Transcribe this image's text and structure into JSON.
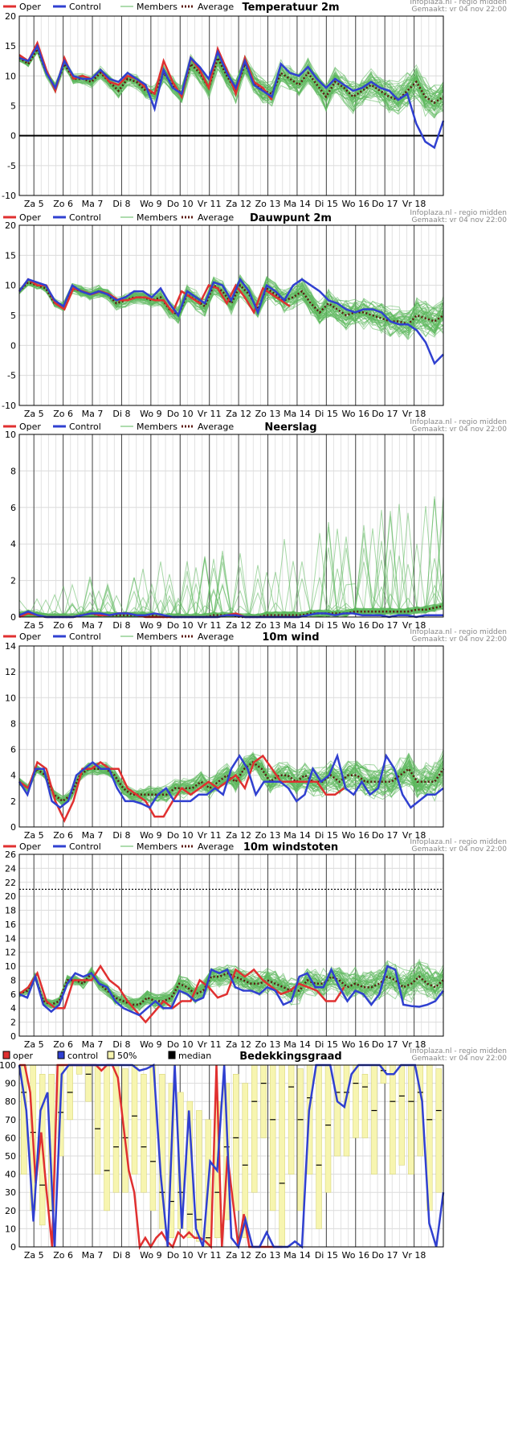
{
  "source": {
    "line1": "Infoplaza.nl - regio midden",
    "line2": "Gemaakt: vr 04 nov 22:00"
  },
  "days": [
    "Za 5",
    "Zo 6",
    "Ma 7",
    "Di 8",
    "Wo 9",
    "Do 10",
    "Vr 11",
    "Za 12",
    "Zo 13",
    "Ma 14",
    "Di 15",
    "Wo 16",
    "Do 17",
    "Vr 18"
  ],
  "legend": {
    "oper": "Oper",
    "control": "Control",
    "members": "Members",
    "average": "Average"
  },
  "legend_cloud": {
    "oper": "oper",
    "control": "control",
    "band": "50%",
    "median": "median"
  },
  "colors": {
    "oper": "#e03030",
    "control": "#3040d0",
    "members": "#5cb85c",
    "average": "#5a1a10",
    "band": "#f7f5b0",
    "zero_line": "#000000"
  },
  "chart_data": [
    {
      "type": "line",
      "title": "Temperatuur 2m",
      "ylim": [
        -10,
        20
      ],
      "yticks": [
        20,
        15,
        10,
        5,
        0,
        -5,
        -10
      ],
      "zero_line": true,
      "series": [
        {
          "name": "Oper",
          "values": [
            13.5,
            12.5,
            15.5,
            11,
            7.5,
            13,
            9.5,
            10,
            9.5,
            11,
            9,
            8.5,
            10,
            9.5,
            8,
            7,
            12.5,
            9,
            6.5,
            13,
            11,
            8,
            14.5,
            11,
            7,
            13,
            9,
            8,
            6
          ]
        },
        {
          "name": "Control",
          "values": [
            13,
            12.5,
            15,
            10.5,
            8,
            12.5,
            10,
            9.5,
            9.5,
            11,
            9.5,
            9,
            10.5,
            9.5,
            8.5,
            4.5,
            11,
            8,
            7,
            13,
            11.5,
            9.5,
            14,
            10.5,
            8,
            12.5,
            8.5,
            7.5,
            6.5,
            12,
            10.5,
            10,
            11.5,
            9.5,
            8,
            9.5,
            8.5,
            7.5,
            8,
            9,
            8,
            7.5,
            6,
            7,
            2,
            -1,
            -2,
            2.5
          ]
        },
        {
          "name": "Average",
          "values": [
            13,
            12,
            14.5,
            10.5,
            8,
            12,
            9.5,
            9.5,
            9,
            10.5,
            9,
            7.5,
            9.5,
            9,
            7.5,
            7,
            10.5,
            8.5,
            7,
            12,
            10.5,
            8,
            13,
            10,
            7.5,
            12,
            9,
            7.5,
            7,
            10.5,
            9.5,
            8.5,
            10.5,
            8.5,
            6.5,
            9,
            8,
            6.5,
            7.5,
            8.5,
            7.5,
            6.5,
            6,
            7.5,
            9,
            6.5,
            5.5,
            6.5
          ]
        }
      ]
    },
    {
      "type": "line",
      "title": "Dauwpunt 2m",
      "ylim": [
        -10,
        20
      ],
      "yticks": [
        20,
        15,
        10,
        5,
        0,
        -5,
        -10
      ],
      "zero_line": false,
      "series": [
        {
          "name": "Oper",
          "values": [
            9,
            11,
            10,
            10,
            7,
            6,
            9.5,
            9,
            8.5,
            9,
            8.5,
            7.5,
            7.5,
            8,
            8,
            7.5,
            7.5,
            5.5,
            9,
            8,
            7,
            10,
            9.5,
            7,
            10,
            8,
            5.5,
            9.5,
            8.5,
            7.5,
            6.5
          ]
        },
        {
          "name": "Control",
          "values": [
            9,
            11,
            10.5,
            10,
            7.5,
            6.5,
            10,
            9,
            8.5,
            9,
            8.5,
            7.5,
            8,
            9,
            9,
            8,
            9.5,
            7,
            5,
            9,
            8,
            7,
            10.5,
            10,
            7.5,
            11,
            9,
            5.5,
            10,
            9,
            7.5,
            10,
            11,
            10,
            9,
            7.5,
            7,
            6,
            5.5,
            6,
            6,
            5.5,
            4,
            3.5,
            3.5,
            2.5,
            0.5,
            -3,
            -1.5
          ]
        },
        {
          "name": "Average",
          "values": [
            9,
            10.5,
            10,
            9.5,
            7,
            6.5,
            9.5,
            9,
            8.5,
            9,
            8.5,
            7,
            7.5,
            8,
            8,
            7.5,
            8,
            6,
            5,
            8.5,
            7.5,
            6.5,
            10,
            9,
            7,
            10,
            8.5,
            6,
            9.5,
            8.5,
            7.5,
            8,
            9,
            7,
            5.5,
            7,
            6,
            5,
            5.5,
            5.5,
            5,
            4.5,
            4,
            4,
            3.5,
            5,
            4.5,
            4,
            5
          ]
        }
      ]
    },
    {
      "type": "line",
      "title": "Neerslag",
      "ylim": [
        0,
        10
      ],
      "yticks": [
        10,
        8,
        6,
        4,
        2,
        0
      ],
      "zero_line": false,
      "series": [
        {
          "name": "Oper",
          "values": [
            0,
            0.2,
            0.1,
            0,
            0,
            0,
            0,
            0.1,
            0.2,
            0.1,
            0.1,
            0.2,
            0.2,
            0.1,
            0,
            0,
            0,
            0,
            0,
            0,
            0,
            0,
            0,
            0.1,
            0.2,
            0,
            0,
            0,
            0,
            0,
            0,
            0
          ]
        },
        {
          "name": "Control",
          "values": [
            0.1,
            0.3,
            0.1,
            0,
            0,
            0,
            0,
            0.1,
            0.2,
            0.2,
            0.1,
            0.2,
            0.2,
            0.1,
            0.1,
            0.2,
            0.1,
            0,
            0,
            0,
            0,
            0,
            0,
            0.1,
            0.1,
            0,
            0,
            0,
            0,
            0,
            0,
            0,
            0.1,
            0.2,
            0.2,
            0.1,
            0.2,
            0.2,
            0.1,
            0.1,
            0.1,
            0,
            0.1,
            0.1,
            0,
            0.1,
            0.1,
            0.1
          ]
        },
        {
          "name": "Average",
          "values": [
            0.1,
            0.2,
            0.1,
            0,
            0,
            0,
            0,
            0.1,
            0.2,
            0.1,
            0.1,
            0.1,
            0.1,
            0.1,
            0.1,
            0.1,
            0,
            0,
            0,
            0,
            0,
            0,
            0.1,
            0.1,
            0.1,
            0,
            0,
            0,
            0.1,
            0.1,
            0.1,
            0.1,
            0.1,
            0.2,
            0.2,
            0.2,
            0.2,
            0.2,
            0.3,
            0.3,
            0.3,
            0.3,
            0.3,
            0.3,
            0.3,
            0.4,
            0.4,
            0.5,
            0.6
          ]
        }
      ]
    },
    {
      "type": "line",
      "title": "10m wind",
      "ylim": [
        0,
        14
      ],
      "yticks": [
        14,
        12,
        10,
        8,
        6,
        4,
        2,
        0
      ],
      "zero_line": false,
      "series": [
        {
          "name": "Oper",
          "values": [
            3.5,
            3,
            5,
            4.5,
            2,
            0.5,
            2,
            4.5,
            4.5,
            5,
            4.5,
            4.5,
            3,
            2.5,
            2,
            0.8,
            0.8,
            2,
            3,
            2.5,
            3,
            3.5,
            3,
            3.5,
            4,
            3,
            5,
            5.5,
            4.5,
            3.5,
            3.5,
            3.5,
            3.5,
            3.5,
            2.5,
            2.5,
            3
          ]
        },
        {
          "name": "Control",
          "values": [
            3.5,
            2.5,
            4.5,
            4.5,
            2,
            1.5,
            2,
            4,
            4.5,
            5,
            4.5,
            4.5,
            3,
            2,
            2,
            1.8,
            1.5,
            2.5,
            3,
            2,
            2,
            2,
            2.5,
            2.5,
            3,
            2.5,
            4.5,
            5.5,
            4.5,
            2.5,
            3.5,
            3.5,
            3.5,
            3,
            2,
            2.5,
            4.5,
            3.5,
            4,
            5.5,
            3,
            2.5,
            3.5,
            2.5,
            3,
            5.5,
            4.5,
            2.5,
            1.5,
            2,
            2.5,
            2.5,
            3
          ]
        },
        {
          "name": "Average",
          "values": [
            3.5,
            3,
            4.5,
            4,
            2.5,
            2,
            2.5,
            4,
            4.5,
            4.5,
            4.5,
            4,
            3,
            2.5,
            2.5,
            2.5,
            2.5,
            2.5,
            3,
            3,
            3,
            3.5,
            3,
            3.5,
            4,
            3.5,
            4.5,
            5,
            4.5,
            3.5,
            4,
            4,
            3.5,
            4,
            3.5,
            3.5,
            4,
            3.5,
            4,
            4,
            3.5,
            3.5,
            3.5,
            3.5,
            4,
            4.5,
            3.5,
            3.5,
            3.5,
            4.5
          ]
        }
      ]
    },
    {
      "type": "line",
      "title": "10m windstoten",
      "ylim": [
        0,
        26
      ],
      "yticks": [
        26,
        24,
        22,
        20,
        18,
        16,
        14,
        12,
        10,
        8,
        6,
        4,
        2,
        0
      ],
      "zero_line": false,
      "threshold": 21,
      "series": [
        {
          "name": "Oper",
          "values": [
            6,
            7,
            9,
            5,
            4,
            4,
            8,
            8,
            8,
            10,
            8,
            7,
            5,
            3.5,
            2,
            3.5,
            5,
            4,
            5,
            5,
            8,
            7,
            5.5,
            6,
            9.5,
            8.5,
            9.5,
            8,
            7,
            6,
            6.5,
            7.5,
            7,
            6.5,
            5,
            5,
            7
          ]
        },
        {
          "name": "Control",
          "values": [
            6,
            5.5,
            8.5,
            4.5,
            3.5,
            4.5,
            7.5,
            9,
            8.5,
            9,
            7.5,
            7,
            5,
            4,
            3.5,
            3,
            4,
            5,
            4,
            4,
            6.5,
            6,
            5,
            5.5,
            9.5,
            9,
            9.5,
            7,
            6.5,
            6.5,
            6,
            7,
            6.5,
            4.5,
            5,
            8.5,
            9,
            7,
            7,
            9.5,
            7,
            5,
            6.5,
            6,
            4.5,
            6,
            10,
            9.5,
            4.5,
            4.3,
            4.2,
            4.5,
            5,
            6.5
          ]
        },
        {
          "name": "Average",
          "values": [
            6,
            6.5,
            8.5,
            5,
            4.5,
            5,
            8,
            8,
            7.5,
            9,
            7.5,
            6.5,
            5.5,
            5,
            4.5,
            4.5,
            5.5,
            5,
            5,
            5.5,
            7.5,
            7,
            6,
            6.5,
            8.5,
            8.5,
            9,
            8.5,
            8,
            7.5,
            7.5,
            8,
            7.5,
            7,
            6.5,
            6.5,
            8,
            7.5,
            7.5,
            8.5,
            8,
            7,
            7.5,
            7,
            7,
            7.5,
            8.5,
            8,
            7,
            7.5,
            8.5,
            7.5,
            7,
            8
          ]
        }
      ]
    },
    {
      "type": "bar",
      "title": "Bedekkingsgraad",
      "ylim": [
        0,
        100
      ],
      "yticks": [
        100,
        90,
        80,
        70,
        60,
        50,
        40,
        30,
        20,
        10,
        0
      ],
      "series": [
        {
          "name": "oper",
          "values": [
            100,
            100,
            85,
            35,
            63,
            30,
            0,
            100,
            100,
            100,
            100,
            100,
            100,
            100,
            100,
            97,
            100,
            100,
            93,
            67,
            42,
            30,
            0,
            5,
            0,
            5,
            8,
            3,
            0,
            8,
            5,
            8,
            5,
            5,
            3,
            0,
            100,
            0,
            50,
            25,
            0,
            18,
            0,
            0,
            0,
            0,
            0,
            0,
            0
          ]
        },
        {
          "name": "control",
          "values": [
            100,
            75,
            14,
            75,
            85,
            0,
            95,
            100,
            100,
            100,
            100,
            100,
            100,
            100,
            100,
            100,
            100,
            97,
            98,
            100,
            40,
            0,
            100,
            10,
            75,
            10,
            0,
            47,
            42,
            100,
            5,
            0,
            15,
            0,
            0,
            8,
            0,
            0,
            0,
            3,
            0,
            75,
            100,
            100,
            100,
            80,
            77,
            95,
            100,
            100,
            100,
            100,
            95,
            95,
            100,
            100,
            100,
            80,
            13,
            0,
            30
          ]
        },
        {
          "name": "50%",
          "lows": [
            40,
            20,
            12,
            20,
            50,
            70,
            95,
            80,
            40,
            20,
            30,
            30,
            40,
            30,
            20,
            10,
            5,
            10,
            5,
            3,
            0,
            5,
            15,
            20,
            5,
            30,
            60,
            20,
            0,
            40,
            20,
            40,
            10,
            30,
            50,
            50,
            60,
            60,
            40,
            90,
            40,
            45,
            40,
            50,
            20,
            30
          ],
          "highs": [
            100,
            100,
            95,
            95,
            100,
            100,
            100,
            100,
            100,
            100,
            100,
            98,
            100,
            95,
            100,
            95,
            90,
            85,
            80,
            75,
            70,
            80,
            90,
            95,
            90,
            100,
            100,
            100,
            100,
            100,
            98,
            100,
            100,
            100,
            100,
            100,
            100,
            95,
            100,
            100,
            100,
            100,
            100,
            100,
            100,
            98
          ]
        },
        {
          "name": "median",
          "values": [
            85,
            63,
            34,
            20,
            74,
            85,
            100,
            95,
            65,
            42,
            55,
            60,
            72,
            55,
            47,
            30,
            25,
            30,
            18,
            15,
            5,
            30,
            55,
            60,
            45,
            80,
            90,
            70,
            35,
            88,
            70,
            82,
            45,
            67,
            85,
            85,
            90,
            88,
            75,
            97,
            80,
            83,
            80,
            85,
            70,
            75
          ]
        }
      ]
    }
  ]
}
